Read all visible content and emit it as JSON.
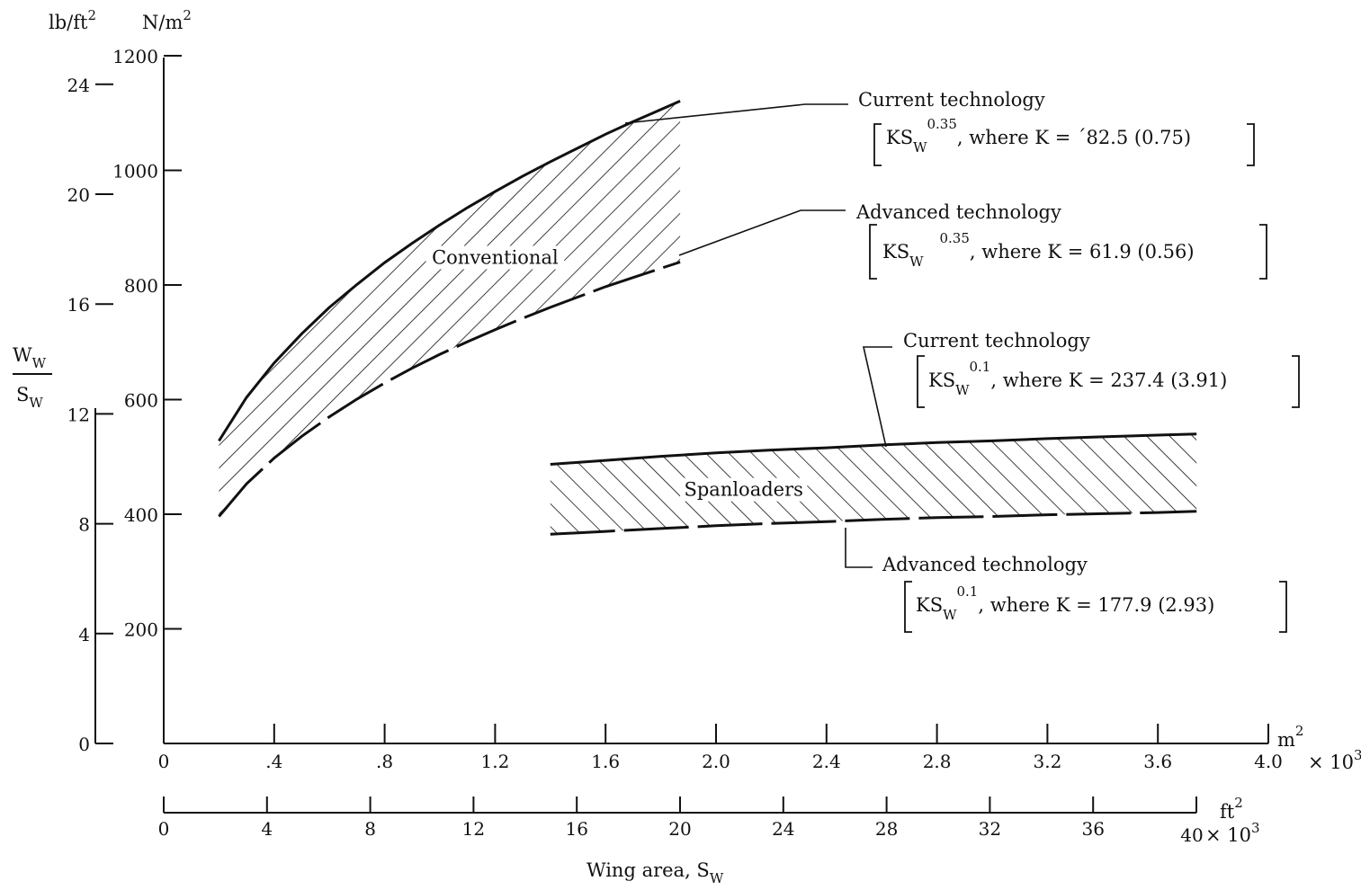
{
  "chart_data": {
    "type": "area",
    "xlabel": "Wing area, S",
    "xlabel_sub": "W",
    "ylabel_num": "W",
    "ylabel_num_sub": "W",
    "ylabel_den": "S",
    "ylabel_den_sub": "W",
    "x_axis_metric": {
      "unit": "m",
      "unit_sup": "2",
      "range": [
        0,
        4.0
      ],
      "ticks": [
        0,
        0.4,
        0.8,
        1.2,
        1.6,
        2.0,
        2.4,
        2.8,
        3.2,
        3.6,
        4.0
      ],
      "tick_labels": [
        "0",
        ".4",
        ".8",
        "1.2",
        "1.6",
        "2.0",
        "2.4",
        "2.8",
        "3.2",
        "3.6",
        "4.0"
      ],
      "multiplier": "× 10",
      "multiplier_exp": "3"
    },
    "x_axis_imperial": {
      "unit": "ft",
      "unit_sup": "2",
      "range": [
        0,
        40
      ],
      "ticks": [
        0,
        4,
        8,
        12,
        16,
        20,
        24,
        28,
        32,
        36,
        40
      ],
      "tick_labels": [
        "0",
        "4",
        "8",
        "12",
        "16",
        "20",
        "24",
        "28",
        "32",
        "36",
        "40"
      ],
      "multiplier": "× 10",
      "multiplier_exp": "3"
    },
    "y_axis_si": {
      "unit": "N/m",
      "unit_sup": "2",
      "range": [
        0,
        1200
      ],
      "ticks": [
        0,
        200,
        400,
        600,
        800,
        1000,
        1200
      ],
      "tick_labels": [
        "",
        "200",
        "400",
        "600",
        "800",
        "1000",
        "1200"
      ]
    },
    "y_axis_imperial": {
      "unit": "lb/ft",
      "unit_sup": "2",
      "range": [
        0,
        24
      ],
      "ticks": [
        0,
        4,
        8,
        12,
        16,
        20,
        24
      ],
      "tick_labels": [
        "0",
        "4",
        "8",
        "12",
        "16",
        "20",
        "24"
      ]
    },
    "series": [
      {
        "name": "Current technology",
        "group": "Conventional",
        "style": "solid",
        "x": [
          0.2,
          0.3,
          0.4,
          0.5,
          0.6,
          0.7,
          0.8,
          0.9,
          1.0,
          1.1,
          1.2,
          1.3,
          1.4,
          1.5,
          1.6,
          1.7,
          1.8,
          1.87
        ],
        "y": [
          528,
          604,
          664,
          715,
          761,
          801,
          839,
          873,
          905,
          935,
          963,
          990,
          1015,
          1039,
          1063,
          1085,
          1106,
          1121
        ]
      },
      {
        "name": "Advanced technology",
        "group": "Conventional",
        "style": "dashed",
        "x": [
          0.2,
          0.3,
          0.4,
          0.5,
          0.6,
          0.7,
          0.8,
          0.9,
          1.0,
          1.1,
          1.2,
          1.3,
          1.4,
          1.5,
          1.6,
          1.7,
          1.8,
          1.87
        ],
        "y": [
          396,
          453,
          498,
          536,
          570,
          601,
          629,
          655,
          679,
          701,
          722,
          742,
          761,
          779,
          797,
          813,
          829,
          840
        ]
      },
      {
        "name": "Current technology",
        "group": "Spanloaders",
        "style": "solid",
        "x": [
          1.4,
          1.6,
          1.8,
          2.0,
          2.2,
          2.4,
          2.6,
          2.8,
          3.0,
          3.2,
          3.4,
          3.6,
          3.74
        ],
        "y": [
          487,
          494,
          501,
          507,
          512,
          516,
          521,
          525,
          528,
          532,
          535,
          538,
          540
        ]
      },
      {
        "name": "Advanced technology",
        "group": "Spanloaders",
        "style": "dashed",
        "x": [
          1.4,
          1.6,
          1.8,
          2.0,
          2.2,
          2.4,
          2.6,
          2.8,
          3.0,
          3.2,
          3.4,
          3.6,
          3.74
        ],
        "y": [
          365,
          370,
          375,
          380,
          384,
          387,
          391,
          394,
          396,
          399,
          401,
          403,
          405
        ]
      }
    ],
    "region_labels": [
      {
        "text": "Conventional",
        "x": 1.2,
        "y": 840
      },
      {
        "text": "Spanloaders",
        "x": 2.1,
        "y": 435
      }
    ],
    "annotations": [
      {
        "title": "Current technology",
        "formula_base": "KS",
        "formula_sub": "W",
        "formula_exp": "0.35",
        "formula_rest": ", where K = ´82.5 (0.75)"
      },
      {
        "title": "Advanced technology",
        "formula_base": "KS",
        "formula_sub": "W",
        "formula_exp": "0.35",
        "formula_rest": ", where K = 61.9 (0.56)"
      },
      {
        "title": "Current technology",
        "formula_base": "KS",
        "formula_sub": "W",
        "formula_exp": "0.1",
        "formula_rest": ", where K = 237.4 (3.91)"
      },
      {
        "title": "Advanced technology",
        "formula_base": "KS",
        "formula_sub": "W",
        "formula_exp": "0.1",
        "formula_rest": ", where K = 177.9 (2.93)"
      }
    ],
    "grid": false,
    "legend": "none"
  }
}
